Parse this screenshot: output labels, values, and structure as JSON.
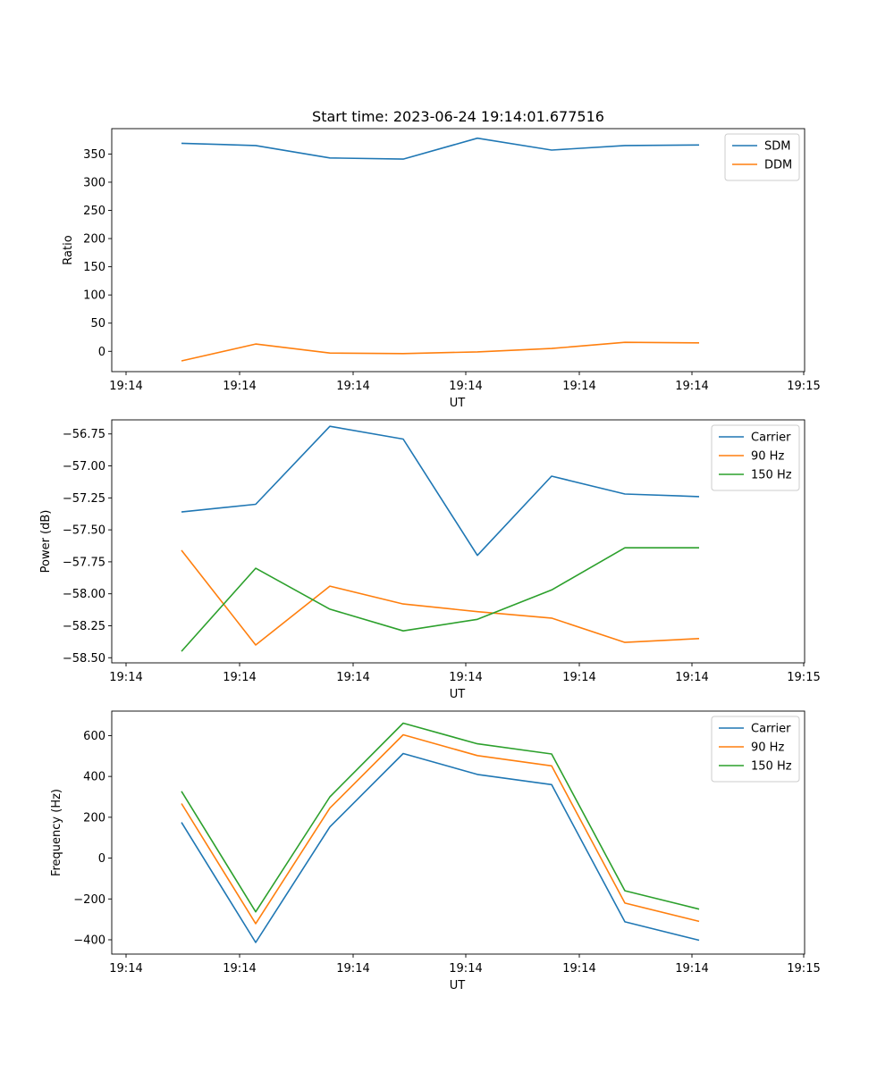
{
  "chart_data": [
    {
      "type": "line",
      "title": "Start time: 2023-06-24 19:14:01.677516",
      "xlabel": "UT",
      "ylabel": "Ratio",
      "x_tick_labels": [
        "19:14",
        "19:14",
        "19:14",
        "19:14",
        "19:14",
        "19:14",
        "19:14",
        "19:15"
      ],
      "y_ticks": [
        0,
        50,
        100,
        150,
        200,
        250,
        300,
        350
      ],
      "y_tick_labels": [
        "0",
        "50",
        "100",
        "150",
        "200",
        "250",
        "300",
        "350"
      ],
      "ylim": [
        -36,
        395
      ],
      "legend": "top-right",
      "grid": false,
      "series": [
        {
          "name": "SDM",
          "color": "#1f77b4",
          "values": [
            369,
            365,
            343,
            341,
            378,
            357,
            365,
            366
          ]
        },
        {
          "name": "DDM",
          "color": "#ff7f0e",
          "values": [
            -17,
            13,
            -3,
            -4,
            -1,
            5,
            16,
            15
          ]
        }
      ]
    },
    {
      "type": "line",
      "title": "",
      "xlabel": "UT",
      "ylabel": "Power (dB)",
      "x_tick_labels": [
        "19:14",
        "19:14",
        "19:14",
        "19:14",
        "19:14",
        "19:14",
        "19:14",
        "19:15"
      ],
      "y_ticks": [
        -58.5,
        -58.25,
        -58.0,
        -57.75,
        -57.5,
        -57.25,
        -57.0,
        -56.75
      ],
      "y_tick_labels": [
        "−58.50",
        "−58.25",
        "−58.00",
        "−57.75",
        "−57.50",
        "−57.25",
        "−57.00",
        "−56.75"
      ],
      "ylim": [
        -58.54,
        -56.64
      ],
      "legend": "top-right",
      "grid": false,
      "series": [
        {
          "name": "Carrier",
          "color": "#1f77b4",
          "values": [
            -57.36,
            -57.3,
            -56.69,
            -56.79,
            -57.7,
            -57.08,
            -57.22,
            -57.24
          ]
        },
        {
          "name": "90 Hz",
          "color": "#ff7f0e",
          "values": [
            -57.66,
            -58.4,
            -57.94,
            -58.08,
            -58.14,
            -58.19,
            -58.38,
            -58.35
          ]
        },
        {
          "name": "150 Hz",
          "color": "#2ca02c",
          "values": [
            -58.45,
            -57.8,
            -58.12,
            -58.29,
            -58.2,
            -57.97,
            -57.64,
            -57.64
          ]
        }
      ]
    },
    {
      "type": "line",
      "title": "",
      "xlabel": "UT",
      "ylabel": "Frequency (Hz)",
      "x_tick_labels": [
        "19:14",
        "19:14",
        "19:14",
        "19:14",
        "19:14",
        "19:14",
        "19:14",
        "19:15"
      ],
      "y_ticks": [
        -400,
        -200,
        0,
        200,
        400,
        600
      ],
      "y_tick_labels": [
        "−400",
        "−200",
        "0",
        "200",
        "400",
        "600"
      ],
      "ylim": [
        -470,
        720
      ],
      "legend": "top-right",
      "grid": false,
      "series": [
        {
          "name": "Carrier",
          "color": "#1f77b4",
          "values": [
            175,
            -413,
            153,
            512,
            410,
            360,
            -312,
            -402
          ]
        },
        {
          "name": "90 Hz",
          "color": "#ff7f0e",
          "values": [
            267,
            -321,
            245,
            604,
            502,
            452,
            -220,
            -310
          ]
        },
        {
          "name": "150 Hz",
          "color": "#2ca02c",
          "values": [
            327,
            -263,
            300,
            661,
            560,
            510,
            -160,
            -250
          ]
        }
      ]
    }
  ]
}
